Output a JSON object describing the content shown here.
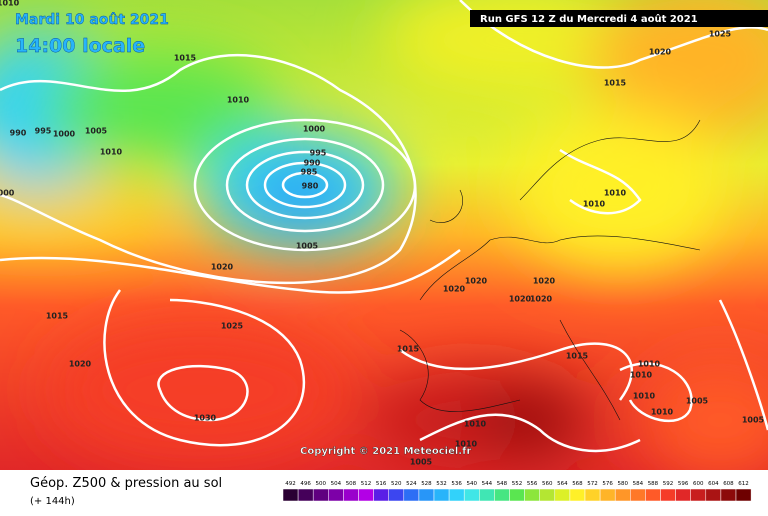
{
  "header": {
    "date": "Mardi 10 août 2021",
    "time": "14:00 locale",
    "run": "Run GFS 12 Z du Mercredi 4 août 2021"
  },
  "copyright": "Copyright © 2021 Meteociel.fr",
  "footer": {
    "title": "Géop. Z500 & pression au sol",
    "lead": "(+ 144h)"
  },
  "isobar_labels": [
    "1010",
    "1015",
    "1010",
    "990",
    "995",
    "1000",
    "1005",
    "1010",
    "1000",
    "995",
    "990",
    "985",
    "980",
    "000",
    "1005",
    "1020",
    "1015",
    "1025",
    "1020",
    "1030",
    "1020",
    "1025",
    "1015",
    "1010",
    "1010",
    "1020",
    "1020",
    "1020",
    "1020",
    "1020",
    "1015",
    "1015",
    "1010",
    "1010",
    "1010",
    "1005",
    "1010",
    "1005",
    "1010",
    "1010",
    "1005"
  ],
  "legend": {
    "levels": [
      "492",
      "496",
      "500",
      "504",
      "508",
      "512",
      "516",
      "520",
      "524",
      "528",
      "532",
      "536",
      "540",
      "544",
      "548",
      "552",
      "556",
      "560",
      "564",
      "568",
      "572",
      "576",
      "580",
      "584",
      "588",
      "592",
      "596",
      "600",
      "604",
      "608",
      "612"
    ],
    "colors": [
      "#2a0033",
      "#45005a",
      "#600080",
      "#7d00a8",
      "#9a00cc",
      "#b300e6",
      "#5a1ee6",
      "#3c46f0",
      "#2d6ef5",
      "#2896f8",
      "#28b4fa",
      "#32d2fa",
      "#40e6e6",
      "#40e6b4",
      "#46e682",
      "#5ae650",
      "#8ce63c",
      "#b4e632",
      "#dcf028",
      "#fff028",
      "#ffd228",
      "#ffb428",
      "#ff9628",
      "#ff7828",
      "#ff5a28",
      "#f53c28",
      "#e12828",
      "#c81e1e",
      "#aa1414",
      "#8c0a0a",
      "#6e0000"
    ]
  }
}
